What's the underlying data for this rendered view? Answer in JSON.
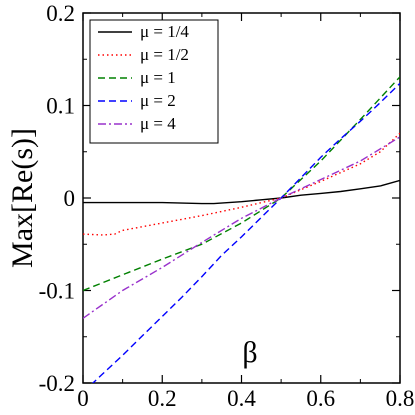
{
  "chart_data": {
    "type": "line",
    "xlabel": "β",
    "ylabel": "Max[Re(s)]",
    "xlim": [
      0,
      0.8
    ],
    "ylim": [
      -0.2,
      0.2
    ],
    "x_ticks": [
      "0",
      "0.2",
      "0.4",
      "0.6",
      "0.8"
    ],
    "y_ticks": [
      "-0.2",
      "-0.1",
      "0",
      "0.1",
      "0.2"
    ],
    "legend_position": "top-left",
    "grid": false,
    "series": [
      {
        "name": "μ = 1/4",
        "color": "#000000",
        "dash": "solid",
        "x": [
          0,
          0.1,
          0.2,
          0.3,
          0.33,
          0.4,
          0.45,
          0.5,
          0.55,
          0.6,
          0.65,
          0.7,
          0.75,
          0.8
        ],
        "y": [
          -0.005,
          -0.005,
          -0.005,
          -0.006,
          -0.006,
          -0.004,
          -0.002,
          0,
          0.003,
          0.005,
          0.007,
          0.01,
          0.013,
          0.019
        ]
      },
      {
        "name": "μ = 1/2",
        "color": "#ff0000",
        "dash": "dotted",
        "x": [
          0,
          0.05,
          0.08,
          0.1,
          0.2,
          0.3,
          0.4,
          0.5,
          0.6,
          0.7,
          0.75,
          0.8
        ],
        "y": [
          -0.039,
          -0.04,
          -0.039,
          -0.035,
          -0.027,
          -0.019,
          -0.01,
          0,
          0.018,
          0.037,
          0.05,
          0.07
        ]
      },
      {
        "name": "μ = 1",
        "color": "#008000",
        "dash": "dashed",
        "x": [
          0,
          0.1,
          0.2,
          0.3,
          0.4,
          0.5,
          0.6,
          0.7,
          0.8
        ],
        "y": [
          -0.1,
          -0.083,
          -0.066,
          -0.05,
          -0.027,
          0,
          0.04,
          0.085,
          0.131
        ]
      },
      {
        "name": "μ = 2",
        "color": "#0000ff",
        "dash": "dashed",
        "x": [
          0,
          0.05,
          0.1,
          0.15,
          0.2,
          0.25,
          0.3,
          0.35,
          0.4,
          0.45,
          0.5,
          0.55,
          0.6,
          0.65,
          0.7,
          0.75,
          0.8
        ],
        "y": [
          -0.21,
          -0.19,
          -0.17,
          -0.149,
          -0.128,
          -0.107,
          -0.085,
          -0.062,
          -0.042,
          -0.021,
          0,
          0.022,
          0.044,
          0.064,
          0.083,
          0.103,
          0.124
        ]
      },
      {
        "name": "μ = 4",
        "color": "#9932cc",
        "dash": "dashdot",
        "x": [
          0,
          0.1,
          0.2,
          0.3,
          0.4,
          0.5,
          0.6,
          0.7,
          0.8
        ],
        "y": [
          -0.13,
          -0.1,
          -0.075,
          -0.048,
          -0.022,
          0,
          0.02,
          0.04,
          0.066
        ]
      }
    ]
  }
}
